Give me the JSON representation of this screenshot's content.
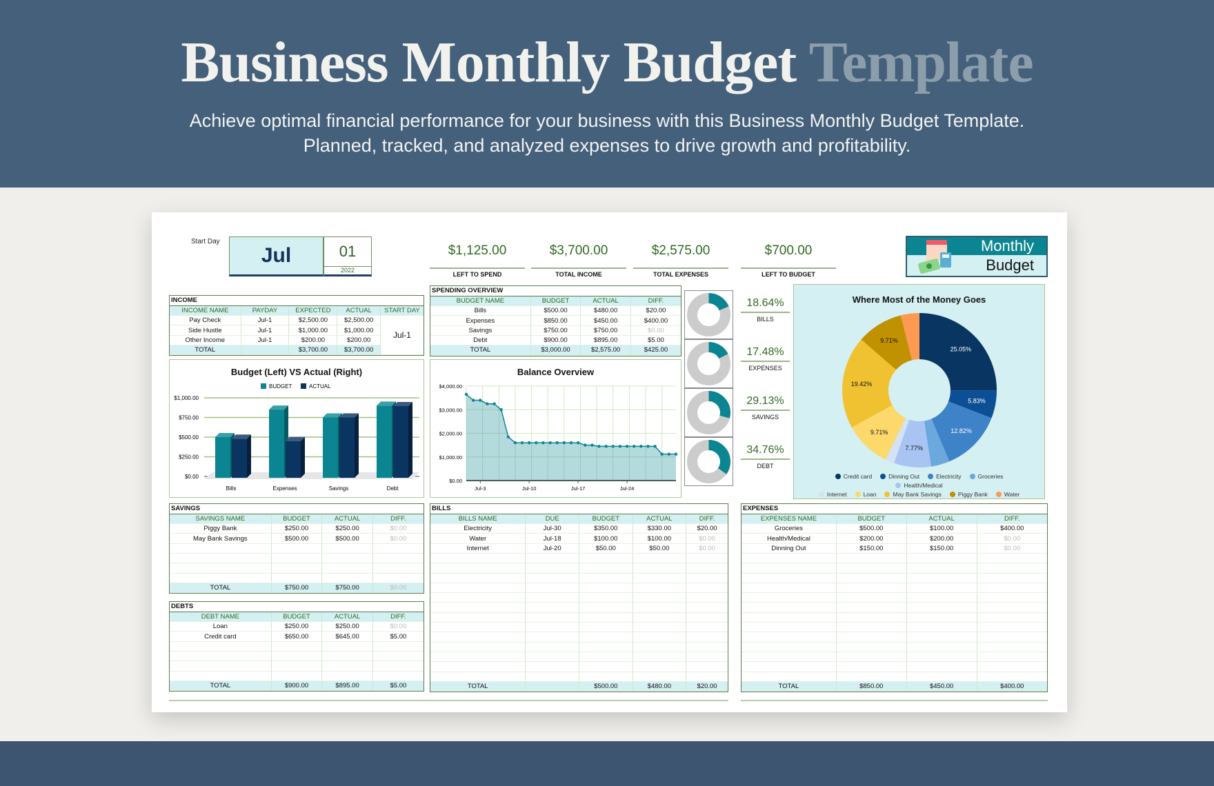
{
  "header": {
    "title_main": "Business Monthly Budget",
    "title_accent": "Template",
    "subtitle_1": "Achieve optimal financial performance for your business with this Business Monthly Budget Template.",
    "subtitle_2": "Planned, tracked, and analyzed expenses to drive growth and profitability."
  },
  "date": {
    "start_day_label": "Start Day",
    "month": "Jul",
    "day": "01",
    "year": "2022"
  },
  "kpis": [
    {
      "value": "$1,125.00",
      "label": "LEFT TO SPEND"
    },
    {
      "value": "$3,700.00",
      "label": "TOTAL INCOME"
    },
    {
      "value": "$2,575.00",
      "label": "TOTAL EXPENSES"
    },
    {
      "value": "$700.00",
      "label": "LEFT TO BUDGET"
    }
  ],
  "logo": {
    "line1": "Monthly",
    "line2": "Budget"
  },
  "colors": {
    "teal": "#0b8591",
    "navy": "#0a3560",
    "header_cyan": "#d4f0f2",
    "green_text": "#2f6a22"
  },
  "income": {
    "title": "INCOME",
    "columns": [
      "INCOME NAME",
      "PAYDAY",
      "EXPECTED",
      "ACTUAL",
      "START DAY"
    ],
    "start_day_value": "Jul-1",
    "rows": [
      [
        "Pay Check",
        "Jul-1",
        "$2,500.00",
        "$2,500.00"
      ],
      [
        "Side Hustle",
        "Jul-1",
        "$1,000.00",
        "$1,000.00"
      ],
      [
        "Other Income",
        "Jul-1",
        "$200.00",
        "$200.00"
      ]
    ],
    "total": [
      "TOTAL",
      "",
      "$3,700.00",
      "$3,700.00"
    ],
    "blank_rows": 0
  },
  "spending": {
    "title": "SPENDING OVERVIEW",
    "columns": [
      "BUDGET NAME",
      "BUDGET",
      "ACTUAL",
      "DIFF."
    ],
    "rows": [
      [
        "Bills",
        "$500.00",
        "$480.00",
        "$20.00"
      ],
      [
        "Expenses",
        "$850.00",
        "$450.00",
        "$400.00"
      ],
      [
        "Savings",
        "$750.00",
        "$750.00",
        "$0.00"
      ],
      [
        "Debt",
        "$900.00",
        "$895.00",
        "$5.00"
      ]
    ],
    "total": [
      "TOTAL",
      "$3,000.00",
      "$2,575.00",
      "$425.00"
    ],
    "blank_rows": 0
  },
  "ratios": [
    {
      "value": "18.64%",
      "label": "BILLS",
      "fraction": 0.1864
    },
    {
      "value": "17.48%",
      "label": "EXPENSES",
      "fraction": 0.1748
    },
    {
      "value": "29.13%",
      "label": "SAVINGS",
      "fraction": 0.2913
    },
    {
      "value": "34.76%",
      "label": "DEBT",
      "fraction": 0.3476
    }
  ],
  "savings": {
    "title": "SAVINGS",
    "columns": [
      "SAVINGS NAME",
      "BUDGET",
      "ACTUAL",
      "DIFF."
    ],
    "rows": [
      [
        "Piggy Bank",
        "$250.00",
        "$250.00",
        "$0.00"
      ],
      [
        "May Bank Savings",
        "$500.00",
        "$500.00",
        "$0.00"
      ]
    ],
    "total": [
      "TOTAL",
      "$750.00",
      "$750.00",
      "$0.00"
    ],
    "blank_rows": 4
  },
  "debts": {
    "title": "DEBTS",
    "columns": [
      "DEBT NAME",
      "BUDGET",
      "ACTUAL",
      "DIFF."
    ],
    "rows": [
      [
        "Loan",
        "$250.00",
        "$250.00",
        "$0.00"
      ],
      [
        "Credit card",
        "$650.00",
        "$645.00",
        "$5.00"
      ]
    ],
    "total": [
      "TOTAL",
      "$900.00",
      "$895.00",
      "$5.00"
    ],
    "blank_rows": 4
  },
  "bills": {
    "title": "BILLS",
    "columns": [
      "BILLS NAME",
      "DUE",
      "BUDGET",
      "ACTUAL",
      "DIFF."
    ],
    "rows": [
      [
        "Electricity",
        "Jul-30",
        "$350.00",
        "$330.00",
        "$20.00"
      ],
      [
        "Water",
        "Jul-18",
        "$100.00",
        "$100.00",
        "$0.00"
      ],
      [
        "Internet",
        "Jul-20",
        "$50.00",
        "$50.00",
        "$0.00"
      ]
    ],
    "total": [
      "TOTAL",
      "",
      "$500.00",
      "$480.00",
      "$20.00"
    ],
    "blank_rows": 13
  },
  "expenses": {
    "title": "EXPENSES",
    "columns": [
      "EXPENSES NAME",
      "BUDGET",
      "ACTUAL",
      "DIFF."
    ],
    "rows": [
      [
        "Groceries",
        "$500.00",
        "$100.00",
        "$400.00"
      ],
      [
        "Health/Medical",
        "$200.00",
        "$200.00",
        "$0.00"
      ],
      [
        "Dinning Out",
        "$150.00",
        "$150.00",
        "$0.00"
      ]
    ],
    "total": [
      "TOTAL",
      "$850.00",
      "$450.00",
      "$400.00"
    ],
    "blank_rows": 13
  },
  "chart_data": [
    {
      "type": "bar",
      "title": "Budget (Left) VS Actual (Right)",
      "categories": [
        "Bills",
        "Expenses",
        "Savings",
        "Debt"
      ],
      "series": [
        {
          "name": "BUDGET",
          "values": [
            500,
            850,
            750,
            900
          ],
          "color": "#0b8591"
        },
        {
          "name": "ACTUAL",
          "values": [
            480,
            450,
            750,
            895
          ],
          "color": "#0a3560"
        }
      ],
      "ylim": [
        0,
        1000
      ],
      "yticks": [
        "$0.00",
        "$250.00",
        "$500.00",
        "$750.00",
        "$1,000.00"
      ],
      "legend": "top"
    },
    {
      "type": "area",
      "title": "Balance Overview",
      "x_days": [
        1,
        2,
        3,
        4,
        5,
        6,
        7,
        8,
        9,
        10,
        11,
        12,
        13,
        14,
        15,
        16,
        17,
        18,
        19,
        20,
        21,
        22,
        23,
        24,
        25,
        26,
        27,
        28,
        29,
        30,
        31
      ],
      "values": [
        3650,
        3400,
        3400,
        3250,
        3250,
        3000,
        1850,
        1600,
        1600,
        1600,
        1600,
        1600,
        1600,
        1600,
        1600,
        1600,
        1600,
        1500,
        1500,
        1450,
        1450,
        1450,
        1450,
        1450,
        1450,
        1450,
        1450,
        1450,
        1120,
        1120,
        1120
      ],
      "ylim": [
        0,
        4000
      ],
      "yticks": [
        "$0.00",
        "$1,000.00",
        "$2,000.00",
        "$3,000.00",
        "$4,000.00"
      ],
      "xticks": [
        {
          "day": 3,
          "label": "Jul-3"
        },
        {
          "day": 10,
          "label": "Jul-10"
        },
        {
          "day": 17,
          "label": "Jul-17"
        },
        {
          "day": 24,
          "label": "Jul-24"
        }
      ]
    },
    {
      "type": "pie",
      "title": "Where Most of the Money Goes",
      "legend": "bottom",
      "slices": [
        {
          "label": "Credit card",
          "value": 645,
          "pct": "25.05%",
          "color": "#083562"
        },
        {
          "label": "Dinning Out",
          "value": 150,
          "pct": "5.83%",
          "color": "#0d4f95"
        },
        {
          "label": "Electricity",
          "value": 330,
          "pct": "12.82%",
          "color": "#3e82c8"
        },
        {
          "label": "Groceries",
          "value": 100,
          "pct": "3.88%",
          "color": "#6aa8de"
        },
        {
          "label": "Health/Medical",
          "value": 200,
          "pct": "7.77%",
          "color": "#a8c4f2"
        },
        {
          "label": "Internet",
          "value": 50,
          "pct": "1.94%",
          "color": "#d3e3f5"
        },
        {
          "label": "Loan",
          "value": 250,
          "pct": "9.71%",
          "color": "#fcd96a"
        },
        {
          "label": "May Bank Savings",
          "value": 500,
          "pct": "19.42%",
          "color": "#f0c232"
        },
        {
          "label": "Piggy Bank",
          "value": 250,
          "pct": "9.71%",
          "color": "#c09100"
        },
        {
          "label": "Water",
          "value": 100,
          "pct": "3.88%",
          "color": "#fb9a50"
        }
      ]
    }
  ]
}
